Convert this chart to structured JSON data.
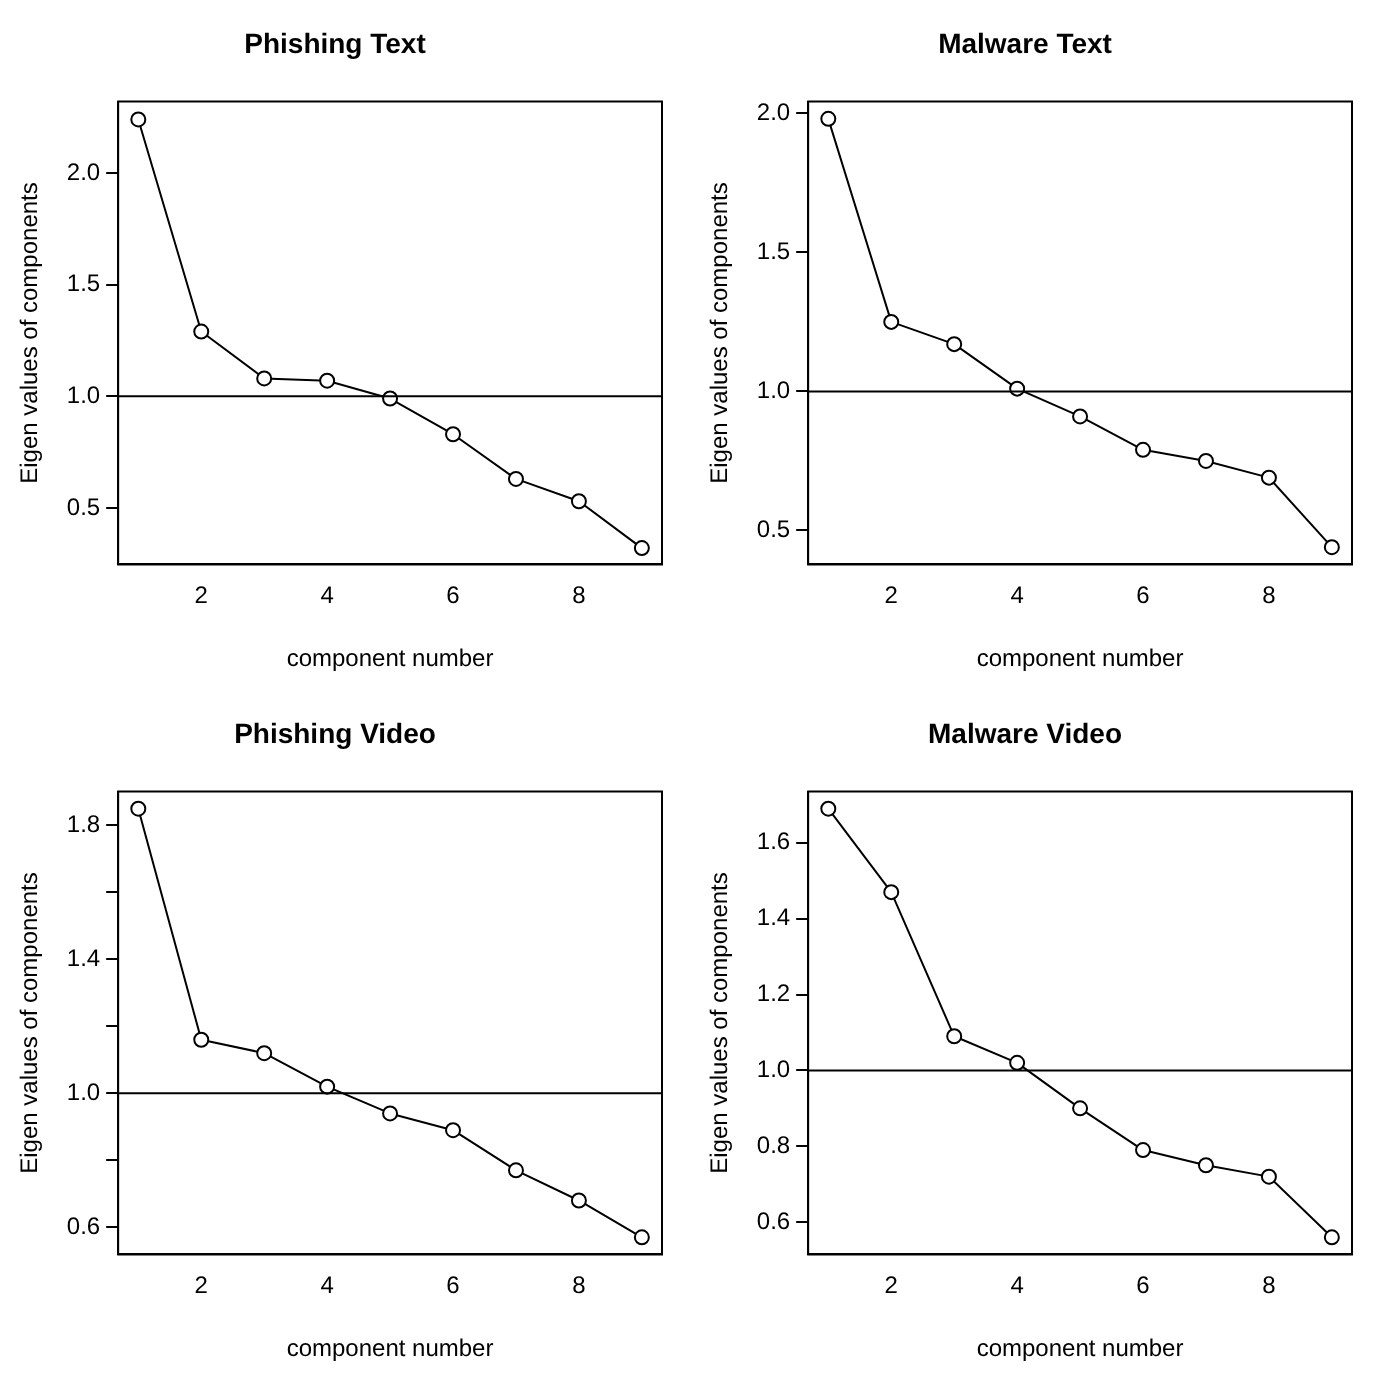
{
  "chart_data": [
    {
      "type": "line",
      "title": "Phishing Text",
      "xlabel": "component number",
      "ylabel": "Eigen values of components",
      "x": [
        1,
        2,
        3,
        4,
        5,
        6,
        7,
        8,
        9
      ],
      "values": [
        2.24,
        1.29,
        1.08,
        1.07,
        0.99,
        0.83,
        0.63,
        0.53,
        0.32
      ],
      "color": "#000000",
      "marker": "circle",
      "xlim": [
        0.68,
        9.32
      ],
      "ylim": [
        0.247,
        2.32
      ],
      "xticks": [
        2,
        4,
        6,
        8
      ],
      "yticks": [
        {
          "value": 0.5,
          "label": "0.5"
        },
        {
          "value": 1,
          "label": "1.0"
        },
        {
          "value": 1.5,
          "label": "1.5"
        },
        {
          "value": 2,
          "label": "2.0"
        }
      ],
      "ref_lines": [
        {
          "axis": "y",
          "value": 1,
          "color": "#000000"
        }
      ]
    },
    {
      "type": "line",
      "title": "Malware Text",
      "xlabel": "component number",
      "ylabel": "Eigen values of components",
      "x": [
        1,
        2,
        3,
        4,
        5,
        6,
        7,
        8,
        9
      ],
      "values": [
        1.98,
        1.25,
        1.17,
        1.01,
        0.91,
        0.79,
        0.75,
        0.69,
        0.44
      ],
      "color": "#000000",
      "marker": "circle",
      "xlim": [
        0.68,
        9.32
      ],
      "ylim": [
        0.378,
        2.042
      ],
      "xticks": [
        2,
        4,
        6,
        8
      ],
      "yticks": [
        {
          "value": 0.5,
          "label": "0.5"
        },
        {
          "value": 1,
          "label": "1.0"
        },
        {
          "value": 1.5,
          "label": "1.5"
        },
        {
          "value": 2,
          "label": "2.0"
        }
      ],
      "ref_lines": [
        {
          "axis": "y",
          "value": 1,
          "color": "#000000"
        }
      ]
    },
    {
      "type": "line",
      "title": "Phishing Video",
      "xlabel": "component number",
      "ylabel": "Eigen values of components",
      "x": [
        1,
        2,
        3,
        4,
        5,
        6,
        7,
        8,
        9
      ],
      "values": [
        1.85,
        1.16,
        1.12,
        1.02,
        0.94,
        0.89,
        0.77,
        0.68,
        0.57
      ],
      "color": "#000000",
      "marker": "circle",
      "xlim": [
        0.68,
        9.32
      ],
      "ylim": [
        0.519,
        1.901
      ],
      "xticks": [
        2,
        4,
        6,
        8
      ],
      "yticks": [
        {
          "value": 0.6,
          "label": "0.6"
        },
        {
          "value": 0.8,
          "label": null
        },
        {
          "value": 1,
          "label": "1.0"
        },
        {
          "value": 1.2,
          "label": null
        },
        {
          "value": 1.4,
          "label": "1.4"
        },
        {
          "value": 1.6,
          "label": null
        },
        {
          "value": 1.8,
          "label": "1.8"
        }
      ],
      "ref_lines": [
        {
          "axis": "y",
          "value": 1,
          "color": "#000000"
        }
      ]
    },
    {
      "type": "line",
      "title": "Malware Video",
      "xlabel": "component number",
      "ylabel": "Eigen values of components",
      "x": [
        1,
        2,
        3,
        4,
        5,
        6,
        7,
        8,
        9
      ],
      "values": [
        1.69,
        1.47,
        1.09,
        1.02,
        0.9,
        0.79,
        0.75,
        0.72,
        0.56
      ],
      "color": "#000000",
      "marker": "circle",
      "xlim": [
        0.68,
        9.32
      ],
      "ylim": [
        0.515,
        1.735
      ],
      "xticks": [
        2,
        4,
        6,
        8
      ],
      "yticks": [
        0.6,
        0.8,
        {
          "value": 1,
          "label": "1.0"
        },
        1.2,
        1.4,
        1.6
      ],
      "ref_lines": [
        {
          "axis": "y",
          "value": 1,
          "color": "#000000"
        }
      ]
    }
  ]
}
